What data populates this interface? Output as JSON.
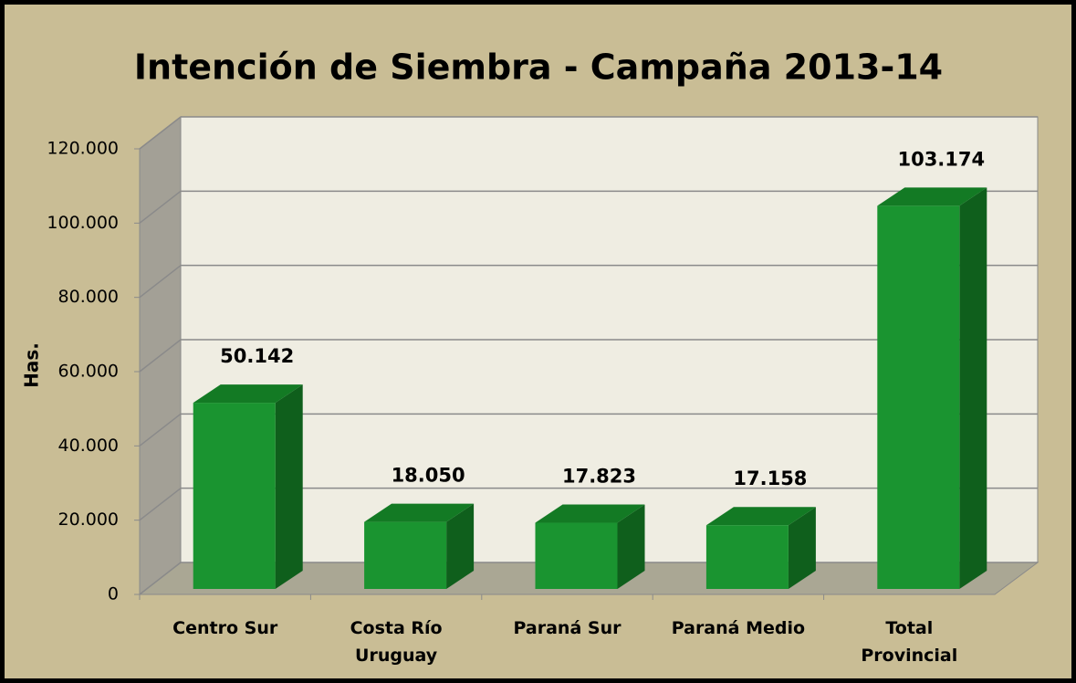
{
  "chart_data": {
    "type": "bar3d",
    "title": "Intención de Siembra - Campaña 2013-14",
    "y_label": "Has.",
    "categories": [
      "Centro Sur",
      "Costa Río\nUruguay",
      "Paraná Sur",
      "Paraná Medio",
      "Total\nProvincial"
    ],
    "values": [
      50142,
      18050,
      17823,
      17158,
      103174
    ],
    "value_labels": [
      "50.142",
      "18.050",
      "17.823",
      "17.158",
      "103.174"
    ],
    "color": "#1a9430",
    "ylim": [
      0,
      120000
    ],
    "yticks": [
      0,
      {
        "value": 20000,
        "label": "20.000"
      },
      {
        "value": 40000,
        "label": "40.000"
      },
      {
        "value": 60000,
        "label": "60.000"
      },
      {
        "value": 80000,
        "label": "80.000"
      },
      {
        "value": 100000,
        "label": "100.000"
      },
      {
        "value": 120000,
        "label": "120.000"
      }
    ],
    "grid": true
  }
}
